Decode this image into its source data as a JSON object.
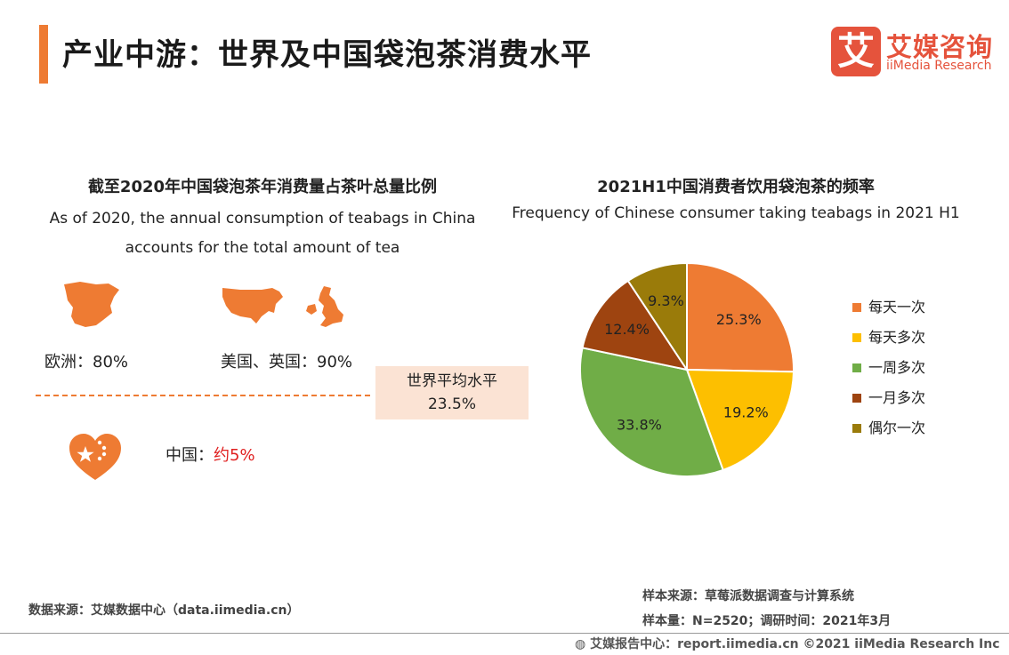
{
  "header": {
    "title": "产业中游：世界及中国袋泡茶消费水平",
    "logo_mark": "艾",
    "logo_cn": "艾媒咨询",
    "logo_en": "iiMedia Research"
  },
  "left_panel": {
    "title_cn": "截至2020年中国袋泡茶年消费量占茶叶总量比例",
    "title_en": "As of 2020, the annual consumption of teabags in China accounts for the total amount of tea",
    "regions": [
      {
        "label": "欧洲：80%",
        "icon": "europe-map-icon"
      },
      {
        "label": "美国、英国：90%",
        "icon": "usa-uk-map-icon"
      }
    ],
    "world_average": {
      "label": "世界平均水平",
      "value": "23.5%"
    },
    "china": {
      "label": "中国：",
      "value": "约5%",
      "icon": "china-heart-icon"
    },
    "colors": {
      "accent": "#ee7b33",
      "highlight": "#e02020",
      "box_bg": "#fbe3d4"
    }
  },
  "chart_data": {
    "type": "pie",
    "title": "2021H1中国消费者饮用袋泡茶的频率",
    "subtitle": "Frequency of Chinese consumer taking teabags in 2021 H1",
    "categories": [
      "每天一次",
      "每天多次",
      "一周多次",
      "一月多次",
      "偶尔一次"
    ],
    "values": [
      25.3,
      19.2,
      33.8,
      12.4,
      9.3
    ],
    "labels": [
      "25.3%",
      "19.2%",
      "33.8%",
      "12.4%",
      "9.3%"
    ],
    "colors": [
      "#ee7b33",
      "#fdbf00",
      "#70ad47",
      "#9e4410",
      "#9a7b0a"
    ],
    "legend_position": "right"
  },
  "footer": {
    "data_source": "数据来源：艾媒数据中心（data.iimedia.cn）",
    "sample_source": "样本来源：草莓派数据调查与计算系统",
    "sample_size": "样本量：N=2520；调研时间：2021年3月",
    "report_center": "艾媒报告中心：report.iimedia.cn ©2021 iiMedia Research Inc"
  }
}
